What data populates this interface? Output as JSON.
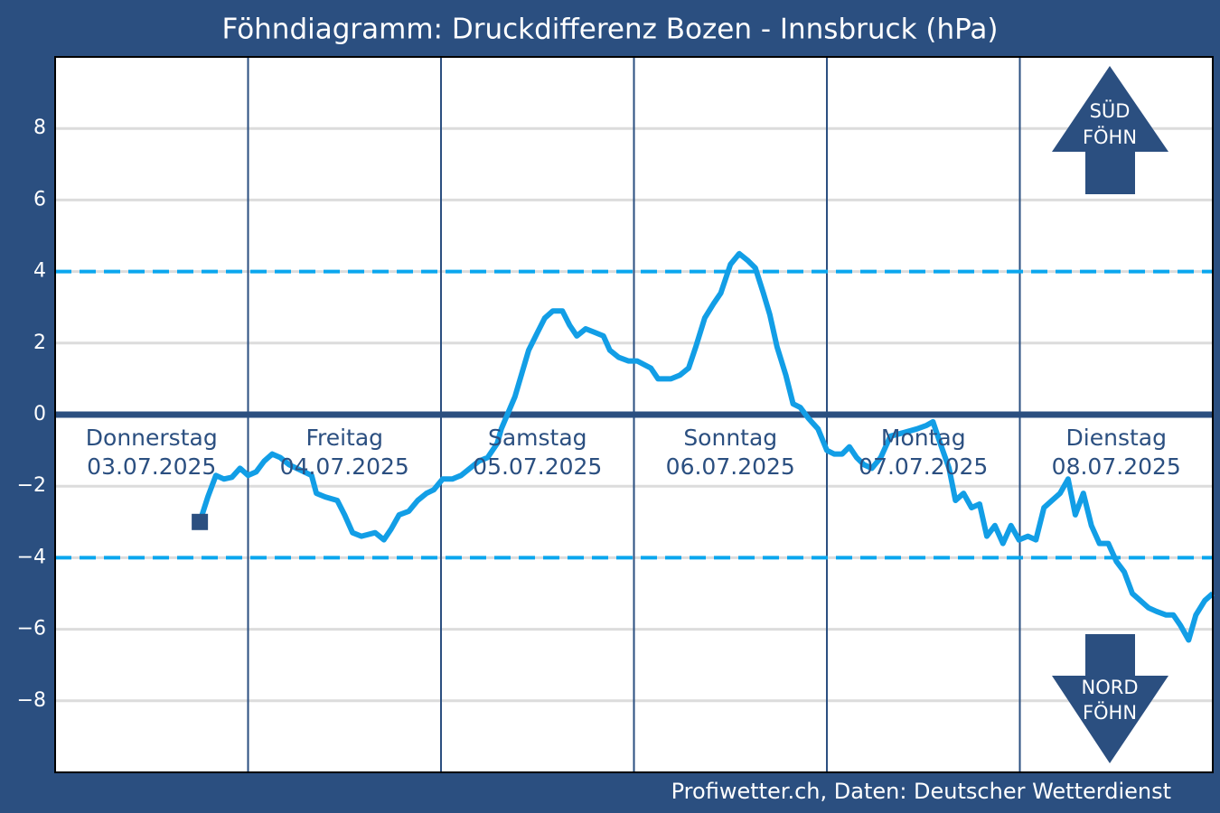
{
  "chart_data": {
    "type": "line",
    "title": "Föhndiagramm: Druckdifferenz Bozen - Innsbruck (hPa)",
    "source": "Profiwetter.ch, Daten: Deutscher Wetterdienst",
    "days": [
      {
        "name": "Donnerstag",
        "date": "03.07.2025"
      },
      {
        "name": "Freitag",
        "date": "04.07.2025"
      },
      {
        "name": "Samstag",
        "date": "05.07.2025"
      },
      {
        "name": "Sonntag",
        "date": "06.07.2025"
      },
      {
        "name": "Montag",
        "date": "07.07.2025"
      },
      {
        "name": "Dienstag",
        "date": "08.07.2025"
      }
    ],
    "annotations": [
      [
        "SÜD",
        "FÖHN"
      ],
      [
        "NORD",
        "FÖHN"
      ]
    ],
    "xlim": [
      0,
      144
    ],
    "xticks": [
      24,
      48,
      72,
      96,
      120
    ],
    "ylim": [
      -10,
      10
    ],
    "yticks": [
      {
        "value": -8,
        "label": "−8"
      },
      {
        "value": -6,
        "label": "−6"
      },
      {
        "value": -4,
        "label": "−4"
      },
      {
        "value": -2,
        "label": "−2"
      },
      0,
      2,
      4,
      6,
      8
    ],
    "thresholds": [
      4,
      -4
    ],
    "threshold_color": "#0aa6ee",
    "grid": true,
    "series": [
      {
        "color": "#129ee6",
        "x": [
          18,
          19,
          20,
          21,
          22,
          23,
          24,
          25,
          26,
          27,
          28,
          29.1,
          31.9,
          32.5,
          33.6,
          35.1,
          36,
          37,
          38.1,
          39.8,
          40.9,
          41.8,
          42.8,
          44,
          45.1,
          46.2,
          47.1,
          48.2,
          49.4,
          50.5,
          51.6,
          52.7,
          53.8,
          55,
          55.5,
          57.2,
          58.9,
          60,
          60.9,
          61.9,
          63.1,
          64,
          64.9,
          66,
          67.1,
          68.2,
          69,
          70.1,
          71.3,
          72.4,
          74.1,
          75,
          76.6,
          77.7,
          78.8,
          79.7,
          80.8,
          81.9,
          82.8,
          84,
          85.1,
          86.2,
          87.1,
          88.1,
          88.9,
          89.8,
          90.9,
          91.8,
          92.7,
          93.7,
          94.9,
          96,
          96.9,
          97.9,
          98.8,
          99.7,
          100.6,
          101.6,
          102.7,
          103.9,
          105.6,
          107.2,
          108.4,
          109.2,
          110.1,
          111.2,
          112,
          113,
          114,
          115,
          115.9,
          116.9,
          117.9,
          118.9,
          119.9,
          121,
          122,
          123,
          124,
          125,
          126,
          126.9,
          127.9,
          128.9,
          129.9,
          131,
          132,
          133,
          134,
          135,
          136,
          137,
          138.2,
          139.1,
          140,
          141,
          141.9,
          143,
          144
        ],
        "values": [
          -3,
          -2.3,
          -1.7,
          -1.8,
          -1.75,
          -1.5,
          -1.7,
          -1.6,
          -1.3,
          -1.1,
          -1.2,
          -1.4,
          -1.7,
          -2.2,
          -2.3,
          -2.4,
          -2.8,
          -3.3,
          -3.4,
          -3.3,
          -3.5,
          -3.2,
          -2.8,
          -2.7,
          -2.4,
          -2.2,
          -2.1,
          -1.8,
          -1.8,
          -1.7,
          -1.5,
          -1.3,
          -1.2,
          -0.8,
          -0.4,
          0.5,
          1.8,
          2.3,
          2.7,
          2.9,
          2.9,
          2.5,
          2.2,
          2.4,
          2.3,
          2.2,
          1.8,
          1.6,
          1.5,
          1.5,
          1.3,
          1,
          1,
          1.1,
          1.3,
          1.9,
          2.7,
          3.1,
          3.4,
          4.2,
          4.5,
          4.3,
          4.1,
          3.4,
          2.8,
          1.9,
          1.1,
          0.3,
          0.2,
          -0.1,
          -0.4,
          -1,
          -1.1,
          -1.1,
          -0.9,
          -1.2,
          -1.4,
          -1.5,
          -1.2,
          -0.6,
          -0.5,
          -0.4,
          -0.3,
          -0.2,
          -0.8,
          -1.5,
          -2.4,
          -2.2,
          -2.6,
          -2.5,
          -3.4,
          -3.1,
          -3.6,
          -3.1,
          -3.5,
          -3.4,
          -3.5,
          -2.6,
          -2.4,
          -2.2,
          -1.8,
          -2.8,
          -2.2,
          -3.1,
          -3.6,
          -3.6,
          -4.1,
          -4.4,
          -5,
          -5.2,
          -5.4,
          -5.5,
          -5.6,
          -5.6,
          -5.9,
          -6.3,
          -5.6,
          -5.2,
          -5
        ]
      }
    ]
  }
}
